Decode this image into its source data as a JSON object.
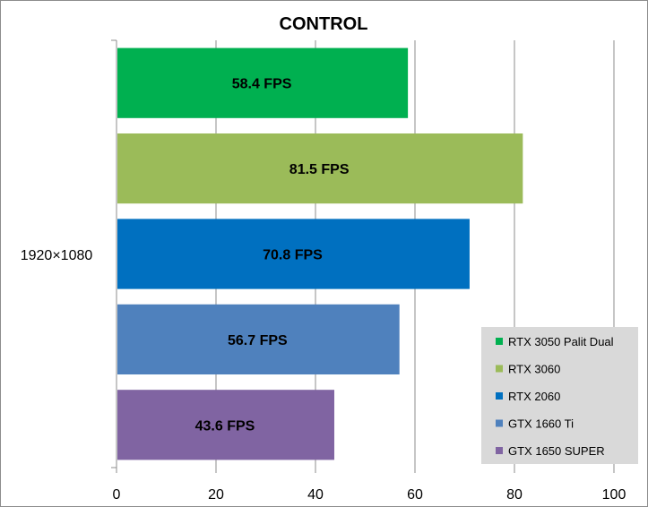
{
  "chart_data": {
    "type": "bar",
    "orientation": "horizontal",
    "title": "CONTROL",
    "categories": [
      "1920×1080"
    ],
    "series": [
      {
        "name": "RTX 3050 Palit Dual",
        "values": [
          58.4
        ],
        "label": "58.4 FPS",
        "color": "#00b050"
      },
      {
        "name": "RTX 3060",
        "values": [
          81.5
        ],
        "label": "81.5 FPS",
        "color": "#9bbb59"
      },
      {
        "name": "RTX 2060",
        "values": [
          70.8
        ],
        "label": "70.8 FPS",
        "color": "#0070c0"
      },
      {
        "name": "GTX 1660 Ti",
        "values": [
          56.7
        ],
        "label": "56.7 FPS",
        "color": "#4f81bd"
      },
      {
        "name": "GTX 1650 SUPER",
        "values": [
          43.6
        ],
        "label": "43.6 FPS",
        "color": "#8064a2"
      }
    ],
    "xlim": [
      0,
      100
    ],
    "xticks": [
      "0",
      "20",
      "40",
      "60",
      "80",
      "100"
    ],
    "grid": true,
    "legend_position": "bottom-right",
    "xlabel": "",
    "ylabel": ""
  }
}
